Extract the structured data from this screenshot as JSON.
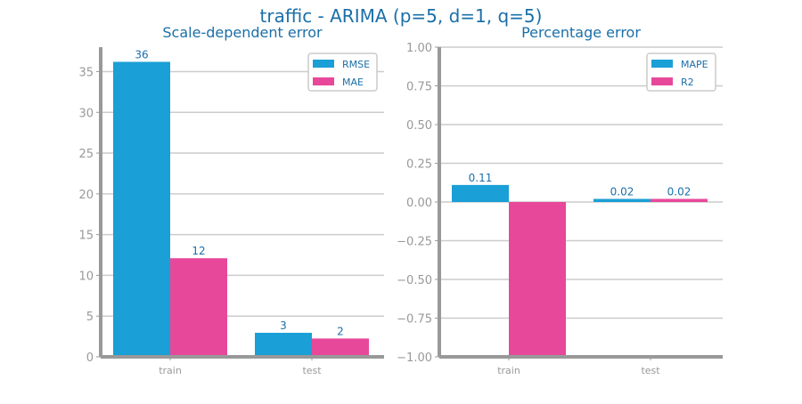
{
  "figure": {
    "title": "traffic - ARIMA (p=5, d=1, q=5)"
  },
  "colors": {
    "title": "#1a6fa8",
    "axis": "#999999",
    "grid": "#cccccc",
    "tick_label": "#999999",
    "data_label": "#1a6fa8",
    "series_blue": "#1a9fd6",
    "series_pink": "#e8489a"
  },
  "chart_data": [
    {
      "type": "bar",
      "title": "Scale-dependent error",
      "categories": [
        "train",
        "test"
      ],
      "series": [
        {
          "name": "RMSE",
          "values": [
            36.2,
            2.95
          ],
          "labels": [
            "36",
            "3"
          ],
          "color": "#1a9fd6"
        },
        {
          "name": "MAE",
          "values": [
            12.1,
            2.25
          ],
          "labels": [
            "12",
            "2"
          ],
          "color": "#e8489a"
        }
      ],
      "ylim": [
        0,
        38
      ],
      "yticks": [
        0,
        5,
        10,
        15,
        20,
        25,
        30,
        35
      ],
      "ytick_labels": [
        "0",
        "5",
        "10",
        "15",
        "20",
        "25",
        "30",
        "35"
      ],
      "grid": true,
      "legend": "top-right"
    },
    {
      "type": "bar",
      "title": "Percentage error",
      "categories": [
        "train",
        "test"
      ],
      "series": [
        {
          "name": "MAPE",
          "values": [
            0.11,
            0.02
          ],
          "labels": [
            "0.11",
            "0.02"
          ],
          "color": "#1a9fd6"
        },
        {
          "name": "R2",
          "values": [
            -1.0,
            0.02
          ],
          "labels": [
            "",
            "0.02"
          ],
          "color": "#e8489a"
        }
      ],
      "ylim": [
        -1.0,
        1.0
      ],
      "yticks": [
        -1.0,
        -0.75,
        -0.5,
        -0.25,
        0.0,
        0.25,
        0.5,
        0.75,
        1.0
      ],
      "ytick_labels": [
        "−1.00",
        "−0.75",
        "−0.50",
        "−0.25",
        "0.00",
        "0.25",
        "0.50",
        "0.75",
        "1.00"
      ],
      "grid": true,
      "legend": "top-right"
    }
  ]
}
